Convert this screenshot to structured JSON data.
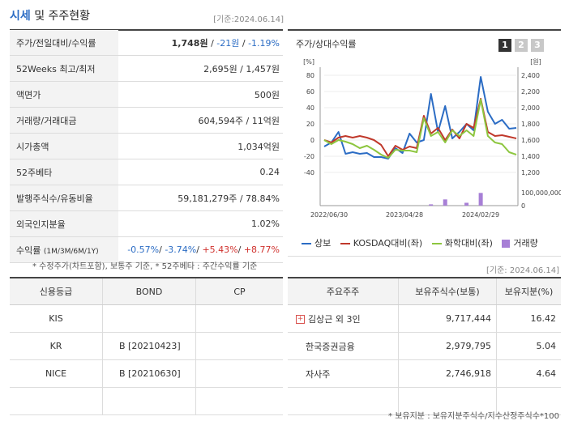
{
  "header": {
    "title_main": "시세",
    "title_rest": " 및 주주현황",
    "as_of": "[기준:2024.06.14]"
  },
  "price_table": {
    "rows": [
      {
        "label": "주가/전일대비/수익률",
        "price": "1,748원",
        "change": "-21원",
        "rate": "-1.19%"
      },
      {
        "label": "52Weeks 최고/최저",
        "value": "2,695원 / 1,457원"
      },
      {
        "label": "액면가",
        "value": "500원"
      },
      {
        "label": "거래량/거래대금",
        "value": "604,594주 / 11억원"
      },
      {
        "label": "시가총액",
        "value": "1,034억원"
      },
      {
        "label": "52주베타",
        "value": "0.24"
      },
      {
        "label": "발행주식수/유동비율",
        "value": "59,181,279주 / 78.84%"
      },
      {
        "label": "외국인지분율",
        "value": "1.02%"
      }
    ],
    "returns": {
      "label": "수익률",
      "label_small": "(1M/3M/6M/1Y)",
      "r1m": "-0.57%",
      "r3m": "-3.74%",
      "r6m": "+5.43%",
      "r1y": "+8.77%"
    },
    "note": "* 수정주가(차트포함), 보통주 기준, * 52주베타 : 주간수익률 기준"
  },
  "chart_panel": {
    "title": "주가/상대수익률",
    "tabs": [
      "1",
      "2",
      "3"
    ],
    "active_tab": 0,
    "as_of": "[기준: 2024.06.14]"
  },
  "chart_data": {
    "type": "line",
    "title": "",
    "left_axis": {
      "unit": "[%]",
      "ticks": [
        "80",
        "60",
        "40",
        "20",
        "0",
        "-20",
        "-40"
      ],
      "range": [
        -40,
        80
      ]
    },
    "right_axis": {
      "unit": "[원]",
      "ticks": [
        "2,400",
        "2,200",
        "2,000",
        "1,800",
        "1,600",
        "1,400",
        "1,200"
      ],
      "range": [
        1200,
        2400
      ]
    },
    "volume_axis": {
      "ticks": [
        "100,000,000",
        "0"
      ],
      "range": [
        0,
        100000000
      ]
    },
    "x_ticks": [
      "2022/06/30",
      "2023/04/28",
      "2024/02/29"
    ],
    "series": [
      {
        "name": "상보",
        "color": "#2b6cc4",
        "axis": "left",
        "values": [
          -8,
          -3,
          10,
          -17,
          -15,
          -17,
          -16,
          -21,
          -21,
          -23,
          -10,
          -16,
          8,
          -3,
          0,
          57,
          10,
          42,
          2,
          10,
          20,
          12,
          78,
          35,
          20,
          25,
          14,
          15
        ]
      },
      {
        "name": "KOSDAQ대비(좌)",
        "color": "#c0392b",
        "axis": "left",
        "values": [
          0,
          -3,
          3,
          5,
          3,
          5,
          3,
          0,
          -6,
          -20,
          -7,
          -12,
          -8,
          -10,
          30,
          8,
          15,
          0,
          13,
          2,
          20,
          15,
          51,
          10,
          5,
          6,
          4,
          2
        ]
      },
      {
        "name": "화학대비(좌)",
        "color": "#8dc63f",
        "axis": "left",
        "values": [
          0,
          -5,
          0,
          -2,
          -5,
          -10,
          -7,
          -12,
          -18,
          -22,
          -12,
          -13,
          -13,
          -15,
          27,
          5,
          10,
          -3,
          12,
          5,
          12,
          5,
          50,
          5,
          -3,
          -5,
          -15,
          -18
        ]
      },
      {
        "name": "거래량",
        "color": "#a77fd6",
        "axis": "volume",
        "type": "bar",
        "values": [
          0,
          0,
          0,
          0,
          0,
          0,
          0,
          0,
          0,
          0,
          0,
          0,
          0,
          0,
          0,
          10000000,
          0,
          48000000,
          0,
          0,
          22000000,
          0,
          98000000,
          0,
          0,
          0,
          0,
          0
        ]
      }
    ]
  },
  "credit_table": {
    "headers": [
      "신용등급",
      "BOND",
      "CP"
    ],
    "rows": [
      {
        "agency": "KIS",
        "bond": "",
        "cp": ""
      },
      {
        "agency": "KR",
        "bond": "B   [20210423]",
        "cp": ""
      },
      {
        "agency": "NICE",
        "bond": "B   [20210630]",
        "cp": ""
      },
      {
        "agency": "",
        "bond": "",
        "cp": ""
      }
    ]
  },
  "holder_table": {
    "headers": [
      "주요주주",
      "보유주식수(보통)",
      "보유지분(%)"
    ],
    "rows": [
      {
        "name": "김상근 외 3인",
        "shares": "9,717,444",
        "pct": "16.42",
        "expand": "+"
      },
      {
        "name": "한국증권금융",
        "shares": "2,979,795",
        "pct": "5.04",
        "expand": ""
      },
      {
        "name": "자사주",
        "shares": "2,746,918",
        "pct": "4.64",
        "expand": ""
      },
      {
        "name": "",
        "shares": "",
        "pct": "",
        "expand": ""
      }
    ],
    "note": "* 보유지분 : 보유지분주식수/지수산정주식수*100"
  }
}
